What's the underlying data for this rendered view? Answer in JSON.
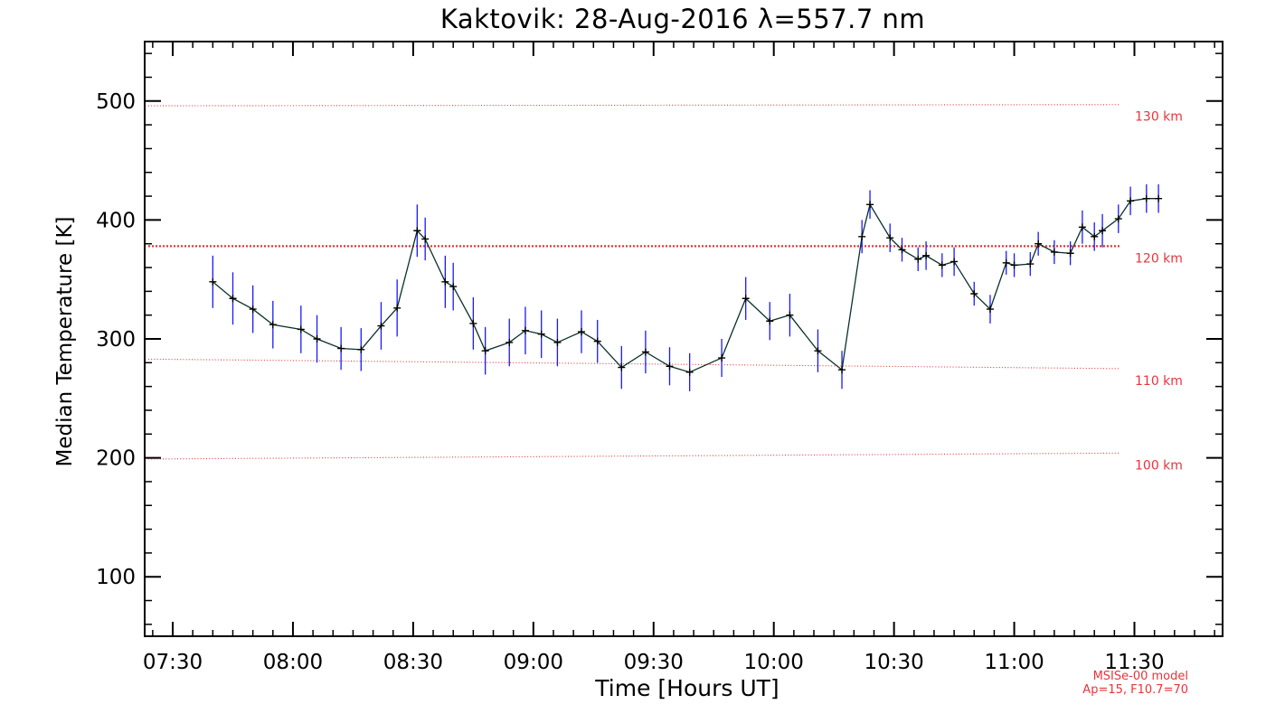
{
  "chart_data": {
    "type": "scatter",
    "title": "Kaktovik: 28-Aug-2016 λ=557.7 nm",
    "xlabel": "Time [Hours UT]",
    "ylabel": "Median Temperature [K]",
    "xlim": [
      "07:23",
      "11:52"
    ],
    "ylim": [
      50,
      550
    ],
    "x_ticks": [
      "07:30",
      "08:00",
      "08:30",
      "09:00",
      "09:30",
      "10:00",
      "10:30",
      "11:00",
      "11:30"
    ],
    "y_ticks": [
      100,
      200,
      300,
      400,
      500
    ],
    "grid": false,
    "series": [
      {
        "color": "#000000",
        "error_bar_color": "#1a1aff",
        "x": [
          "07:40",
          "07:45",
          "07:50",
          "07:55",
          "08:02",
          "08:06",
          "08:12",
          "08:17",
          "08:22",
          "08:26",
          "08:31",
          "08:33",
          "08:38",
          "08:40",
          "08:45",
          "08:48",
          "08:54",
          "08:58",
          "09:02",
          "09:06",
          "09:12",
          "09:16",
          "09:22",
          "09:28",
          "09:34",
          "09:39",
          "09:47",
          "09:53",
          "09:59",
          "10:04",
          "10:11",
          "10:17",
          "10:22",
          "10:24",
          "10:29",
          "10:32",
          "10:36",
          "10:38",
          "10:42",
          "10:45",
          "10:50",
          "10:54",
          "10:58",
          "11:00",
          "11:04",
          "11:06",
          "11:10",
          "11:14",
          "11:17",
          "11:20",
          "11:22",
          "11:26",
          "11:29",
          "11:33",
          "11:36"
        ],
        "y": [
          348,
          334,
          325,
          312,
          308,
          300,
          292,
          291,
          311,
          326,
          391,
          384,
          348,
          344,
          313,
          290,
          297,
          307,
          304,
          297,
          306,
          298,
          276,
          289,
          277,
          272,
          284,
          334,
          315,
          320,
          290,
          274,
          386,
          413,
          385,
          375,
          367,
          370,
          362,
          365,
          338,
          325,
          364,
          362,
          363,
          380,
          373,
          372,
          394,
          386,
          391,
          401,
          416,
          418,
          418
        ],
        "y_err": [
          22,
          22,
          20,
          20,
          20,
          20,
          18,
          18,
          20,
          24,
          22,
          18,
          22,
          20,
          22,
          20,
          20,
          20,
          20,
          20,
          18,
          18,
          18,
          18,
          16,
          16,
          16,
          18,
          16,
          18,
          18,
          16,
          14,
          12,
          12,
          10,
          10,
          12,
          10,
          12,
          10,
          12,
          10,
          10,
          10,
          10,
          10,
          10,
          14,
          12,
          14,
          12,
          12,
          12,
          12
        ]
      }
    ],
    "reference_lines": [
      {
        "label": "130 km",
        "y": [
          496,
          497
        ],
        "color": "#e8343a",
        "style": "dotted"
      },
      {
        "label": "120 km",
        "y": [
          378,
          378
        ],
        "color": "#e8343a",
        "style": "dotted-bold"
      },
      {
        "label": "110 km",
        "y": [
          283,
          275
        ],
        "color": "#e8343a",
        "style": "dotted"
      },
      {
        "label": "100 km",
        "y": [
          199,
          204
        ],
        "color": "#e8343a",
        "style": "dotted"
      }
    ],
    "annotations": {
      "model_line1": "MSISe-00 model",
      "model_line2": "Ap=15, F10.7=70"
    }
  }
}
